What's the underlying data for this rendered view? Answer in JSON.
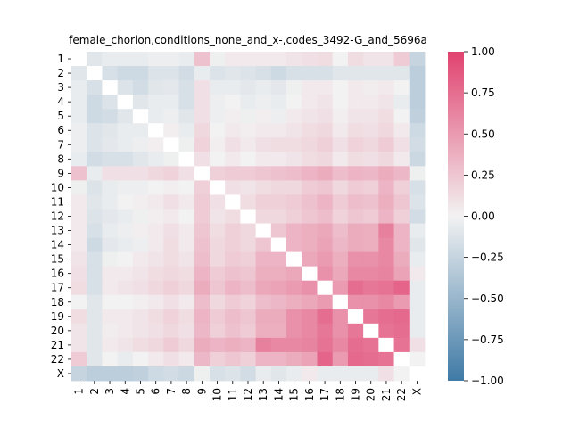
{
  "chart_data": {
    "type": "heatmap",
    "title": "female_chorion,conditions_none_and_x-,codes_3492-G_and_5696a",
    "labels": [
      "1",
      "2",
      "3",
      "4",
      "5",
      "6",
      "7",
      "8",
      "9",
      "10",
      "11",
      "12",
      "13",
      "14",
      "15",
      "16",
      "17",
      "18",
      "19",
      "20",
      "21",
      "22",
      "X"
    ],
    "colorbar": {
      "vmin": -1.0,
      "vmax": 1.0,
      "ticks": [
        "1.00",
        "0.75",
        "0.50",
        "0.25",
        "0.00",
        "−0.25",
        "−0.50",
        "−0.75",
        "−1.00"
      ],
      "tick_values": [
        1.0,
        0.75,
        0.5,
        0.25,
        0.0,
        -0.25,
        -0.5,
        -0.75,
        -1.0
      ],
      "low_color": "#3f7aa6",
      "mid_color": "#f2f2f2",
      "high_color": "#e1426f"
    },
    "diagonal": "masked",
    "values": [
      [
        null,
        -0.1,
        -0.05,
        -0.05,
        -0.05,
        -0.03,
        -0.03,
        -0.05,
        0.28,
        -0.02,
        0.05,
        0.05,
        0.05,
        0.05,
        0.08,
        0.1,
        0.12,
        0.0,
        0.12,
        0.08,
        0.08,
        0.22,
        -0.25
      ],
      [
        -0.1,
        null,
        -0.15,
        -0.2,
        -0.2,
        -0.12,
        -0.12,
        -0.18,
        -0.05,
        -0.12,
        -0.1,
        -0.12,
        -0.15,
        -0.2,
        -0.15,
        -0.15,
        -0.15,
        -0.1,
        -0.1,
        -0.1,
        -0.1,
        -0.1,
        -0.3
      ],
      [
        -0.05,
        -0.15,
        null,
        -0.12,
        -0.18,
        -0.1,
        -0.08,
        -0.15,
        0.1,
        -0.05,
        -0.05,
        -0.08,
        -0.05,
        -0.08,
        -0.02,
        0.05,
        0.05,
        0.0,
        0.05,
        0.03,
        0.05,
        0.0,
        -0.3
      ],
      [
        -0.05,
        -0.2,
        -0.12,
        null,
        -0.1,
        -0.05,
        -0.05,
        -0.15,
        0.1,
        -0.03,
        0.0,
        -0.05,
        -0.03,
        -0.05,
        0.0,
        0.05,
        0.08,
        0.0,
        0.05,
        0.05,
        0.08,
        -0.05,
        -0.3
      ],
      [
        -0.05,
        -0.2,
        -0.18,
        -0.1,
        null,
        -0.05,
        -0.03,
        -0.1,
        0.1,
        -0.03,
        0.02,
        -0.02,
        0.02,
        -0.03,
        0.05,
        0.08,
        0.1,
        0.02,
        0.08,
        0.08,
        0.12,
        0.0,
        -0.28
      ],
      [
        -0.03,
        -0.12,
        -0.1,
        -0.05,
        -0.05,
        null,
        0.02,
        -0.05,
        0.15,
        0.0,
        0.05,
        0.02,
        0.05,
        0.05,
        0.08,
        0.12,
        0.15,
        0.05,
        0.12,
        0.1,
        0.15,
        0.05,
        -0.2
      ],
      [
        -0.03,
        -0.12,
        -0.08,
        -0.05,
        -0.03,
        0.02,
        null,
        -0.02,
        0.18,
        0.02,
        0.1,
        0.05,
        0.1,
        0.12,
        0.12,
        0.15,
        0.2,
        0.1,
        0.18,
        0.15,
        0.22,
        0.1,
        -0.18
      ],
      [
        -0.05,
        -0.18,
        -0.15,
        -0.15,
        -0.1,
        -0.05,
        -0.02,
        null,
        0.1,
        0.0,
        0.05,
        0.0,
        0.05,
        0.05,
        0.08,
        0.12,
        0.15,
        0.05,
        0.12,
        0.1,
        0.15,
        0.05,
        -0.22
      ],
      [
        0.28,
        -0.05,
        0.1,
        0.1,
        0.1,
        0.15,
        0.18,
        0.1,
        null,
        0.2,
        0.22,
        0.22,
        0.25,
        0.28,
        0.3,
        0.35,
        0.4,
        0.3,
        0.35,
        0.33,
        0.4,
        0.33,
        -0.02
      ],
      [
        -0.02,
        -0.12,
        -0.05,
        -0.03,
        -0.03,
        0.0,
        0.02,
        0.0,
        0.2,
        null,
        0.1,
        0.08,
        0.12,
        0.15,
        0.15,
        0.22,
        0.25,
        0.15,
        0.22,
        0.2,
        0.35,
        0.2,
        -0.15
      ],
      [
        0.05,
        -0.1,
        -0.05,
        0.0,
        0.02,
        0.05,
        0.1,
        0.05,
        0.22,
        0.1,
        null,
        0.12,
        0.2,
        0.2,
        0.22,
        0.28,
        0.35,
        0.22,
        0.3,
        0.28,
        0.38,
        0.25,
        -0.12
      ],
      [
        0.05,
        -0.12,
        -0.08,
        -0.05,
        -0.02,
        0.02,
        0.05,
        0.0,
        0.22,
        0.08,
        0.12,
        null,
        0.15,
        0.15,
        0.2,
        0.25,
        0.3,
        0.18,
        0.25,
        0.22,
        0.35,
        0.2,
        -0.18
      ],
      [
        0.05,
        -0.15,
        -0.05,
        -0.03,
        0.02,
        0.05,
        0.1,
        0.05,
        0.25,
        0.12,
        0.2,
        0.15,
        null,
        0.25,
        0.35,
        0.38,
        0.42,
        0.3,
        0.4,
        0.38,
        0.65,
        0.35,
        -0.05
      ],
      [
        0.05,
        -0.2,
        -0.08,
        -0.05,
        -0.03,
        0.05,
        0.12,
        0.05,
        0.28,
        0.15,
        0.2,
        0.15,
        0.25,
        null,
        0.35,
        0.38,
        0.45,
        0.33,
        0.4,
        0.38,
        0.6,
        0.35,
        -0.1
      ],
      [
        0.08,
        -0.15,
        -0.02,
        0.0,
        0.05,
        0.08,
        0.12,
        0.08,
        0.3,
        0.15,
        0.22,
        0.2,
        0.35,
        0.35,
        null,
        0.42,
        0.5,
        0.38,
        0.55,
        0.55,
        0.6,
        0.4,
        -0.05
      ],
      [
        0.1,
        -0.15,
        0.05,
        0.05,
        0.08,
        0.12,
        0.15,
        0.12,
        0.35,
        0.22,
        0.28,
        0.25,
        0.38,
        0.38,
        0.42,
        null,
        0.55,
        0.42,
        0.6,
        0.6,
        0.62,
        0.45,
        0.05
      ],
      [
        0.12,
        -0.15,
        0.05,
        0.08,
        0.1,
        0.15,
        0.2,
        0.15,
        0.4,
        0.25,
        0.35,
        0.3,
        0.42,
        0.45,
        0.5,
        0.55,
        null,
        0.5,
        0.75,
        0.7,
        0.72,
        0.8,
        -0.05
      ],
      [
        0.0,
        -0.1,
        0.0,
        0.0,
        0.02,
        0.05,
        0.1,
        0.05,
        0.3,
        0.15,
        0.22,
        0.18,
        0.3,
        0.33,
        0.38,
        0.42,
        0.5,
        null,
        0.55,
        0.55,
        0.6,
        0.5,
        -0.05
      ],
      [
        0.12,
        -0.1,
        0.05,
        0.05,
        0.08,
        0.12,
        0.18,
        0.12,
        0.35,
        0.22,
        0.3,
        0.25,
        0.4,
        0.4,
        0.55,
        0.6,
        0.75,
        0.55,
        null,
        0.7,
        0.75,
        0.78,
        -0.05
      ],
      [
        0.08,
        -0.1,
        0.03,
        0.05,
        0.08,
        0.1,
        0.15,
        0.1,
        0.33,
        0.2,
        0.28,
        0.22,
        0.38,
        0.38,
        0.55,
        0.6,
        0.7,
        0.55,
        0.7,
        null,
        0.72,
        0.75,
        -0.05
      ],
      [
        0.08,
        -0.1,
        0.05,
        0.08,
        0.12,
        0.15,
        0.22,
        0.15,
        0.4,
        0.35,
        0.38,
        0.35,
        0.65,
        0.6,
        0.6,
        0.62,
        0.72,
        0.6,
        0.75,
        0.72,
        null,
        0.72,
        0.1
      ],
      [
        0.22,
        -0.1,
        0.0,
        -0.05,
        0.0,
        0.05,
        0.1,
        0.05,
        0.33,
        0.2,
        0.25,
        0.2,
        0.35,
        0.35,
        0.4,
        0.45,
        0.8,
        0.5,
        0.78,
        0.75,
        0.72,
        null,
        0.0
      ],
      [
        -0.25,
        -0.3,
        -0.3,
        -0.3,
        -0.28,
        -0.2,
        -0.18,
        -0.22,
        -0.02,
        -0.15,
        -0.12,
        -0.18,
        -0.05,
        -0.1,
        -0.05,
        0.05,
        -0.05,
        -0.05,
        -0.05,
        -0.05,
        0.1,
        0.0,
        null
      ]
    ]
  }
}
